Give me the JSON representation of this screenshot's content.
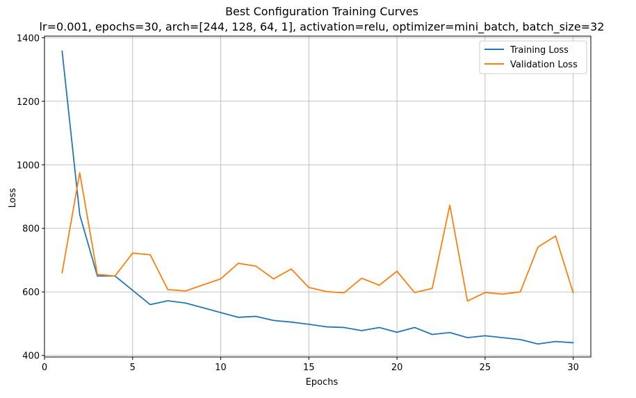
{
  "chart_data": {
    "type": "line",
    "title": "Best Configuration Training Curves",
    "subtitle": "lr=0.001, epochs=30, arch=[244, 128, 64, 1], activation=relu, optimizer=mini_batch, batch_size=32",
    "xlabel": "Epochs",
    "ylabel": "Loss",
    "xlim": [
      0.0,
      31.0
    ],
    "ylim": [
      395,
      1405
    ],
    "xticks": [
      0,
      5,
      10,
      15,
      20,
      25,
      30
    ],
    "yticks": [
      400,
      600,
      800,
      1000,
      1200,
      1400
    ],
    "grid": true,
    "legend_position": "top-right",
    "x": [
      1,
      2,
      3,
      4,
      5,
      6,
      7,
      8,
      9,
      10,
      11,
      12,
      13,
      14,
      15,
      16,
      17,
      18,
      19,
      20,
      21,
      22,
      23,
      24,
      25,
      26,
      27,
      28,
      29,
      30
    ],
    "series": [
      {
        "name": "Training Loss",
        "color": "#1f77b4",
        "values": [
          1358,
          843,
          650,
          650,
          605,
          560,
          572,
          565,
          550,
          535,
          520,
          523,
          510,
          505,
          498,
          490,
          488,
          478,
          488,
          473,
          488,
          466,
          472,
          456,
          462,
          456,
          450,
          436,
          444,
          440
        ]
      },
      {
        "name": "Validation Loss",
        "color": "#ff7f0e",
        "values": [
          660,
          975,
          655,
          650,
          722,
          717,
          607,
          603,
          622,
          641,
          690,
          681,
          641,
          672,
          614,
          601,
          597,
          643,
          621,
          665,
          598,
          611,
          873,
          571,
          598,
          593,
          600,
          741,
          776,
          597
        ]
      }
    ]
  }
}
